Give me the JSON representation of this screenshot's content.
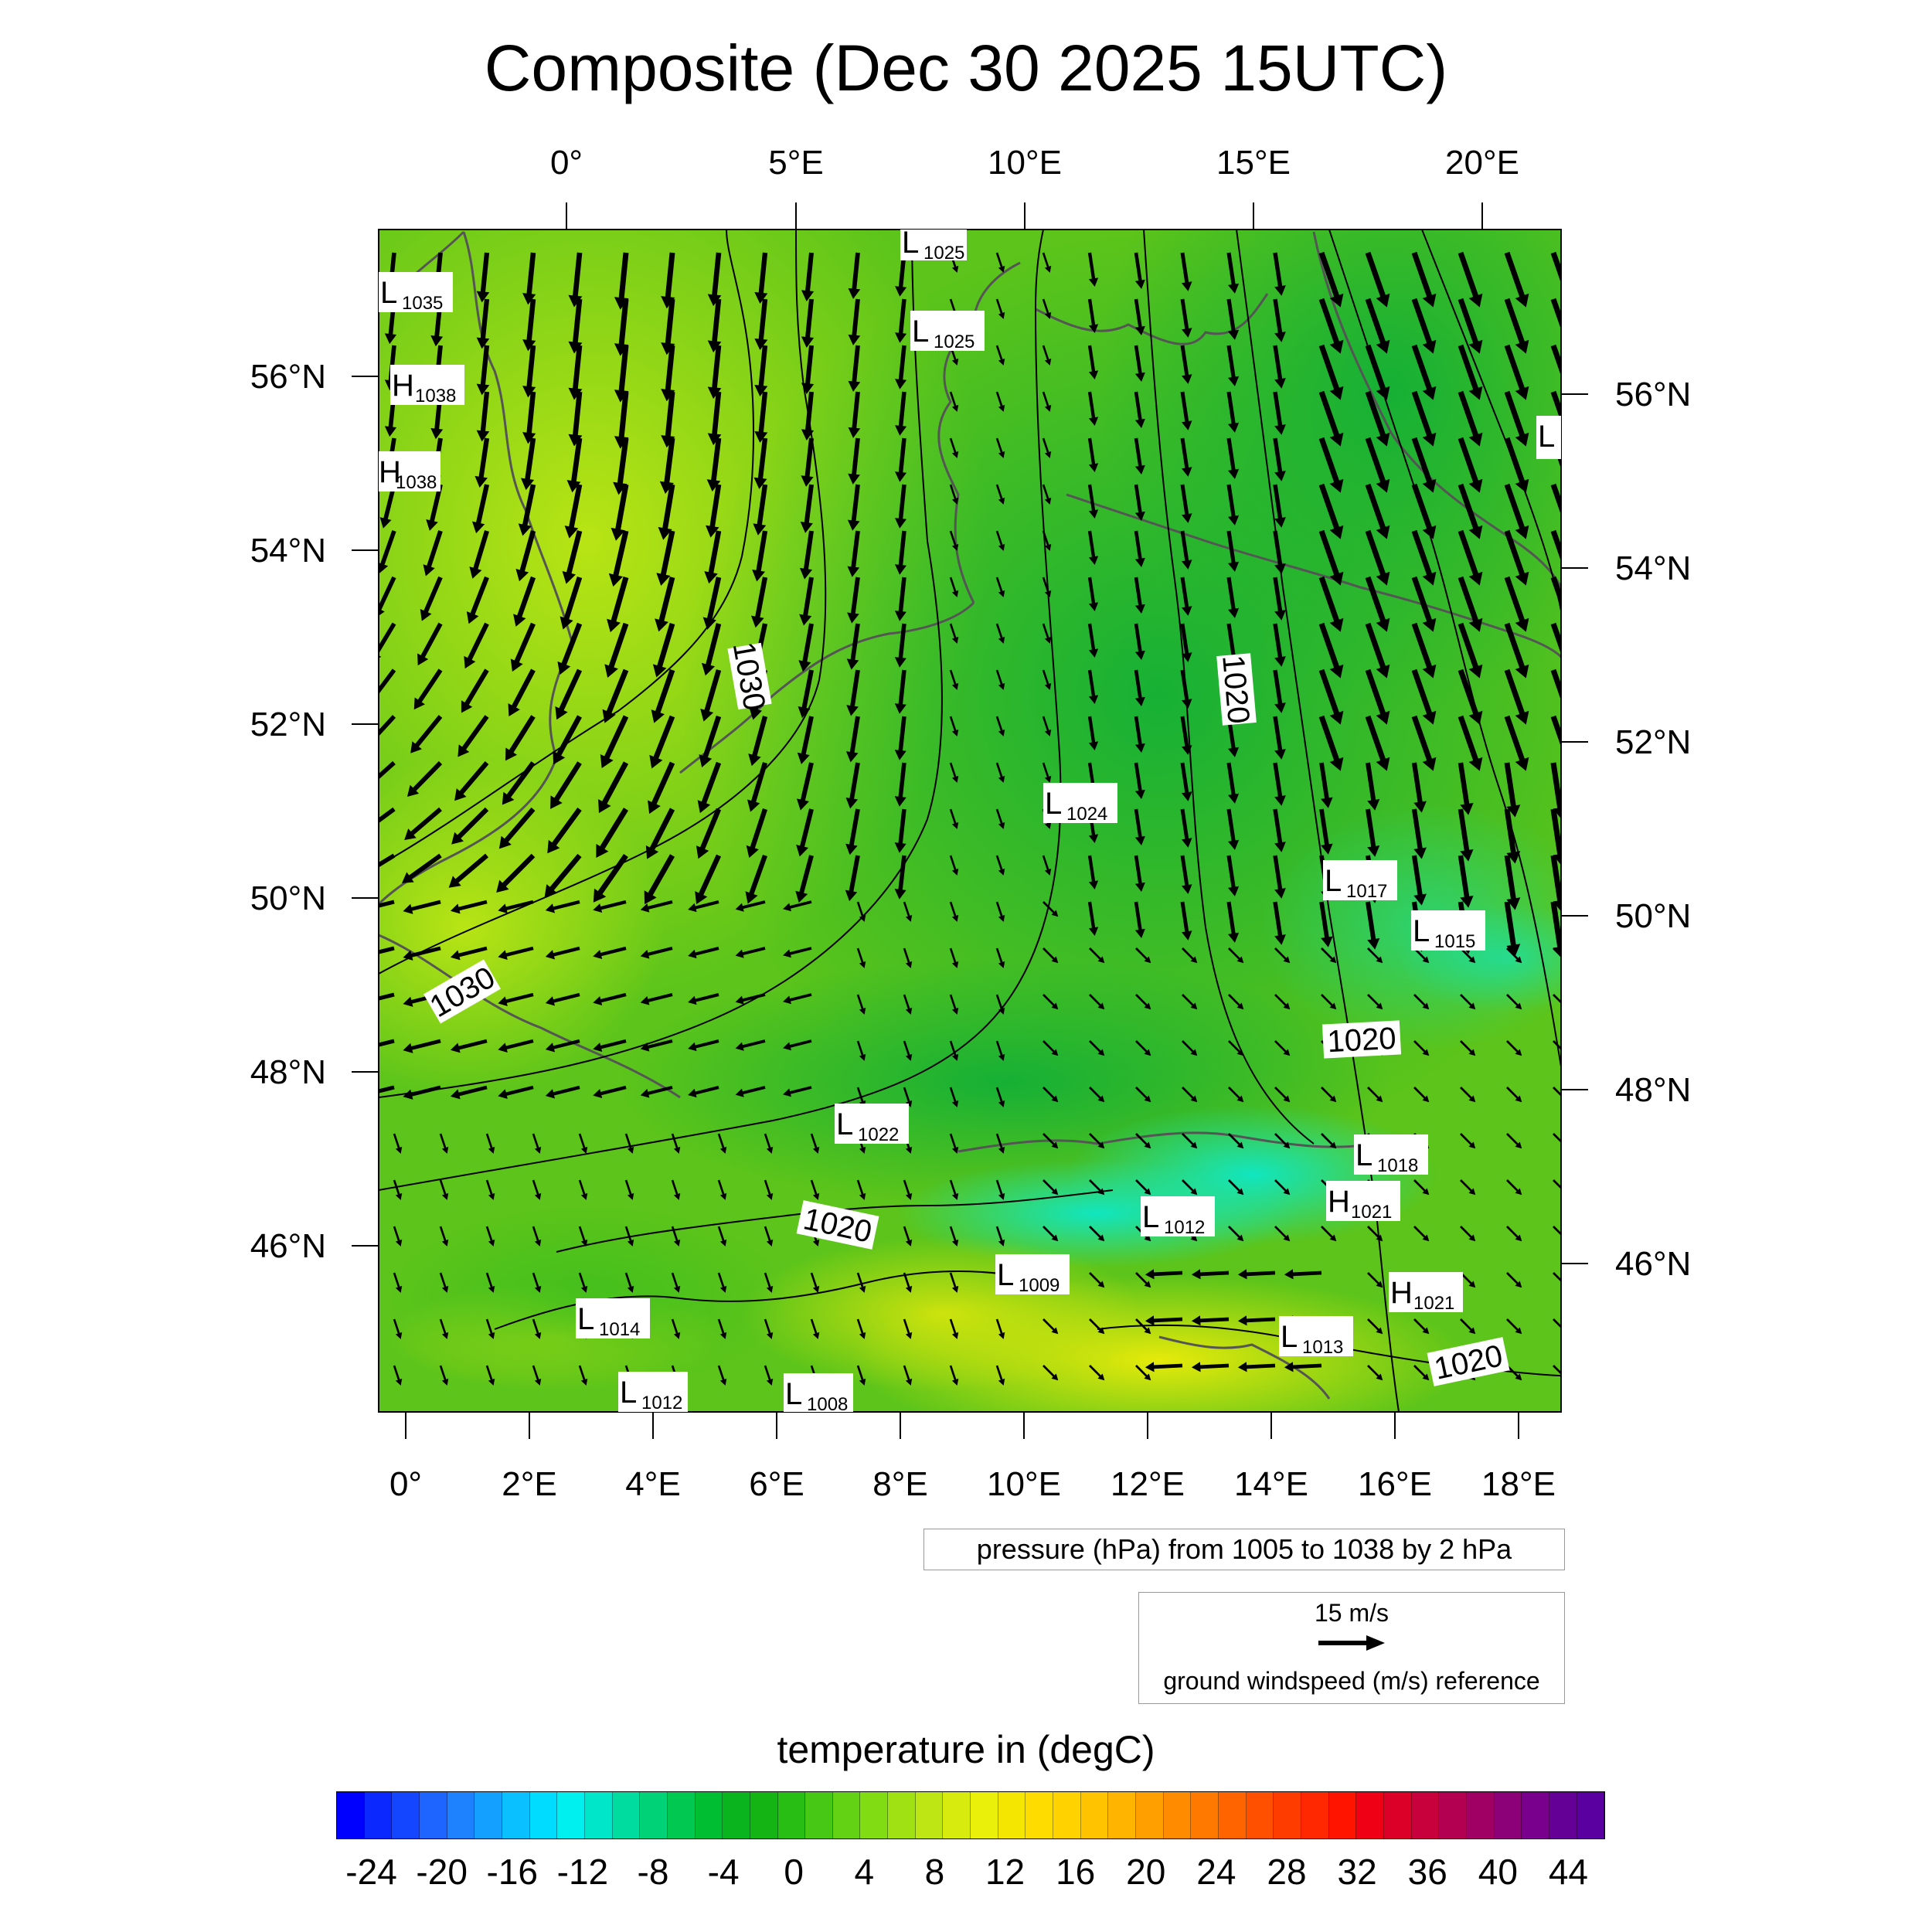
{
  "title": "Composite (Dec 30 2025 15UTC)",
  "map": {
    "top_lon_labels": [
      "0°",
      "5°E",
      "10°E",
      "15°E",
      "20°E"
    ],
    "bottom_lon_labels": [
      "0°",
      "2°E",
      "4°E",
      "6°E",
      "8°E",
      "10°E",
      "12°E",
      "14°E",
      "16°E",
      "18°E"
    ],
    "left_lat_labels": [
      "56°N",
      "54°N",
      "52°N",
      "50°N",
      "48°N",
      "46°N"
    ],
    "right_lat_labels": [
      "56°N",
      "54°N",
      "52°N",
      "50°N",
      "48°N",
      "46°N"
    ],
    "contour_labels": [
      "1030",
      "1030",
      "1020",
      "1020",
      "1020",
      "1020"
    ],
    "pressure_centers": [
      {
        "type": "L",
        "value": "1025"
      },
      {
        "type": "L",
        "value": "1035"
      },
      {
        "type": "L",
        "value": "1025"
      },
      {
        "type": "H",
        "value": "1038"
      },
      {
        "type": "H",
        "value": "1038"
      },
      {
        "type": "L",
        "value": ""
      },
      {
        "type": "L",
        "value": "1024"
      },
      {
        "type": "L",
        "value": "1017"
      },
      {
        "type": "L",
        "value": "1015"
      },
      {
        "type": "L",
        "value": "1022"
      },
      {
        "type": "L",
        "value": "1018"
      },
      {
        "type": "H",
        "value": "1021"
      },
      {
        "type": "L",
        "value": "1012"
      },
      {
        "type": "L",
        "value": "1009"
      },
      {
        "type": "H",
        "value": "1021"
      },
      {
        "type": "L",
        "value": "1014"
      },
      {
        "type": "L",
        "value": "1013"
      },
      {
        "type": "L",
        "value": "1012"
      },
      {
        "type": "L",
        "value": "1008"
      }
    ],
    "colors": {
      "field_base": "#5cc41a",
      "field_cool": "#14b43c",
      "field_cold": "#14dca0",
      "field_warm": "#a6df12",
      "field_hot": "#dde80a",
      "coast": "#555555"
    }
  },
  "legend": {
    "pressure_text": "pressure (hPa) from 1005 to 1038 by 2 hPa",
    "wind_speed": "15 m/s",
    "wind_text": "ground windspeed (m/s) reference"
  },
  "colorbar": {
    "title": "temperature in (degC)",
    "tick_labels": [
      "-24",
      "-20",
      "-16",
      "-12",
      "-8",
      "-4",
      "0",
      "4",
      "8",
      "12",
      "16",
      "20",
      "24",
      "28",
      "32",
      "36",
      "40",
      "44"
    ],
    "min": -26,
    "max": 46,
    "step": 2,
    "colors": [
      "#0000ff",
      "#0a28ff",
      "#1446ff",
      "#1e64ff",
      "#1e82ff",
      "#14a0ff",
      "#0ac0ff",
      "#00dcff",
      "#00f0f0",
      "#00e6c8",
      "#00dca0",
      "#00d278",
      "#00c850",
      "#00be32",
      "#0ab41e",
      "#14b414",
      "#28be14",
      "#46c814",
      "#64d214",
      "#82dc14",
      "#a0e114",
      "#bee614",
      "#d7eb0f",
      "#ebf00a",
      "#f5e600",
      "#ffdc00",
      "#ffd200",
      "#ffc300",
      "#ffb400",
      "#ffa000",
      "#ff8c00",
      "#ff7800",
      "#ff6400",
      "#ff5000",
      "#ff3c00",
      "#ff2800",
      "#ff1400",
      "#f00014",
      "#dc0028",
      "#c8003c",
      "#b40050",
      "#a00064",
      "#8c0078",
      "#78008c",
      "#640096",
      "#5a00a0"
    ]
  }
}
